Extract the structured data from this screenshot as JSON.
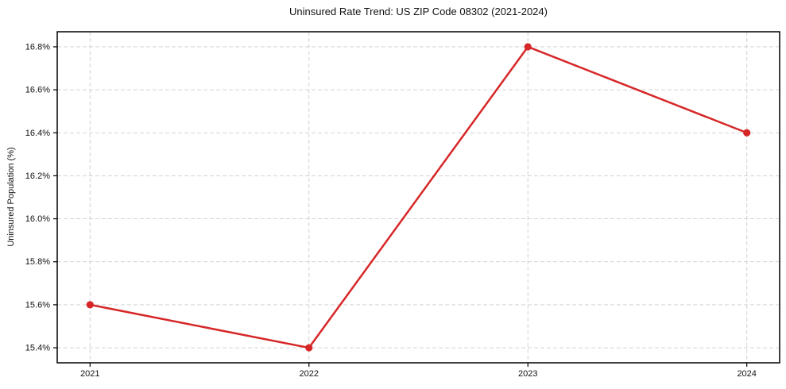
{
  "chart_data": {
    "type": "line",
    "title": "Uninsured Rate Trend: US ZIP Code 08302 (2021-2024)",
    "xlabel": "",
    "ylabel": "Uninsured Population (%)",
    "x": [
      2021,
      2022,
      2023,
      2024
    ],
    "x_tick_labels": [
      "2021",
      "2022",
      "2023",
      "2024"
    ],
    "series": [
      {
        "name": "uninsured-rate",
        "values": [
          15.6,
          15.4,
          16.8,
          16.4
        ],
        "color": "#d62728",
        "marker": "circle"
      }
    ],
    "y_ticks": [
      15.4,
      15.6,
      15.8,
      16.0,
      16.2,
      16.4,
      16.6,
      16.8
    ],
    "y_tick_labels": [
      "15.4%",
      "15.6%",
      "15.8%",
      "16.0%",
      "16.2%",
      "16.4%",
      "16.6%",
      "16.8%"
    ],
    "xlim": [
      2020.85,
      2024.15
    ],
    "ylim": [
      15.33,
      16.87
    ],
    "grid": true,
    "grid_color": "#cdcdcd",
    "axis_color": "#000000",
    "tick_label_color": "#111111",
    "background_color": "#ffffff"
  }
}
